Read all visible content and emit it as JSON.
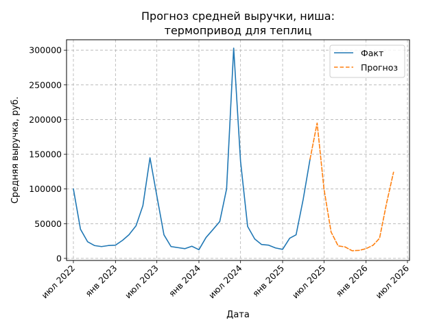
{
  "chart_data": {
    "type": "line",
    "title_line1": "Прогноз средней выручки, ниша:",
    "title_line2": "термопривод для теплиц",
    "xlabel": "Дата",
    "ylabel": "Средняя выручка, руб.",
    "grid": true,
    "legend_position": "top-right",
    "ylim": [
      -3000,
      315000
    ],
    "xlim": [
      "2022-06-01",
      "2026-07-10"
    ],
    "x_ticks": [
      {
        "date": "2022-07-01",
        "label": "июл 2022"
      },
      {
        "date": "2023-01-01",
        "label": "янв 2023"
      },
      {
        "date": "2023-07-01",
        "label": "июл 2023"
      },
      {
        "date": "2024-01-01",
        "label": "янв 2024"
      },
      {
        "date": "2024-07-01",
        "label": "июл 2024"
      },
      {
        "date": "2025-01-01",
        "label": "янв 2025"
      },
      {
        "date": "2025-07-01",
        "label": "июл 2025"
      },
      {
        "date": "2026-01-01",
        "label": "янв 2026"
      },
      {
        "date": "2026-07-01",
        "label": "июл 2026"
      }
    ],
    "y_ticks": [
      {
        "value": 0,
        "label": "0"
      },
      {
        "value": 50000,
        "label": "50000"
      },
      {
        "value": 100000,
        "label": "100000"
      },
      {
        "value": 150000,
        "label": "150000"
      },
      {
        "value": 200000,
        "label": "200000"
      },
      {
        "value": 250000,
        "label": "250000"
      },
      {
        "value": 300000,
        "label": "300000"
      }
    ],
    "series": [
      {
        "name": "Факт",
        "color": "#1f77b4",
        "style": "solid",
        "points": [
          [
            "2022-07-01",
            100000
          ],
          [
            "2022-08-01",
            42000
          ],
          [
            "2022-09-01",
            24000
          ],
          [
            "2022-10-01",
            18500
          ],
          [
            "2022-11-01",
            17000
          ],
          [
            "2022-12-01",
            18500
          ],
          [
            "2023-01-01",
            19000
          ],
          [
            "2023-02-01",
            26000
          ],
          [
            "2023-03-01",
            34000
          ],
          [
            "2023-04-01",
            47000
          ],
          [
            "2023-05-01",
            76000
          ],
          [
            "2023-06-01",
            145000
          ],
          [
            "2023-07-01",
            90000
          ],
          [
            "2023-08-01",
            34000
          ],
          [
            "2023-09-01",
            17000
          ],
          [
            "2023-10-01",
            15500
          ],
          [
            "2023-11-01",
            14000
          ],
          [
            "2023-12-01",
            17500
          ],
          [
            "2024-01-01",
            12500
          ],
          [
            "2024-02-01",
            30000
          ],
          [
            "2024-03-01",
            41000
          ],
          [
            "2024-04-01",
            53000
          ],
          [
            "2024-05-01",
            100000
          ],
          [
            "2024-06-01",
            303000
          ],
          [
            "2024-07-01",
            140000
          ],
          [
            "2024-08-01",
            46000
          ],
          [
            "2024-09-01",
            28000
          ],
          [
            "2024-10-01",
            20000
          ],
          [
            "2024-11-01",
            19000
          ],
          [
            "2024-12-01",
            15000
          ],
          [
            "2025-01-01",
            13000
          ],
          [
            "2025-02-01",
            29000
          ],
          [
            "2025-03-01",
            34000
          ],
          [
            "2025-04-01",
            85000
          ],
          [
            "2025-05-01",
            143000
          ]
        ]
      },
      {
        "name": "Прогноз",
        "color": "#ff7f0e",
        "style": "dashed",
        "points": [
          [
            "2025-05-01",
            143000
          ],
          [
            "2025-06-01",
            195000
          ],
          [
            "2025-07-01",
            100000
          ],
          [
            "2025-08-01",
            38000
          ],
          [
            "2025-09-01",
            18000
          ],
          [
            "2025-10-01",
            16500
          ],
          [
            "2025-11-01",
            11000
          ],
          [
            "2025-12-01",
            11500
          ],
          [
            "2026-01-01",
            14000
          ],
          [
            "2026-02-01",
            19000
          ],
          [
            "2026-03-01",
            29000
          ],
          [
            "2026-04-01",
            80000
          ],
          [
            "2026-05-01",
            124000
          ]
        ]
      }
    ]
  }
}
